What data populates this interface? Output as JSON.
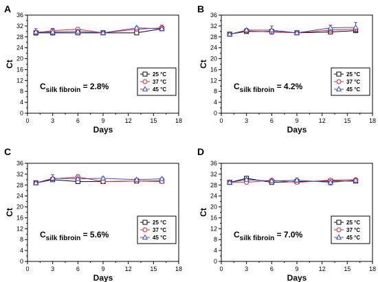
{
  "chart_data": [
    {
      "type": "line",
      "panel": "A",
      "xlabel": "Days",
      "ylabel": "Ct",
      "xlim": [
        0,
        18
      ],
      "ylim": [
        0,
        36
      ],
      "xticks": [
        0,
        3,
        6,
        9,
        12,
        15,
        18
      ],
      "yticks": [
        0,
        4,
        8,
        12,
        16,
        20,
        24,
        28,
        32,
        36
      ],
      "annotation": {
        "base": "C",
        "subscript": "silk fibroin",
        "value": " = 2.8%"
      },
      "legend_position": "right",
      "series": [
        {
          "name": "25 °C",
          "color": "#000000",
          "marker": "square",
          "x": [
            1,
            3,
            6,
            9,
            13,
            16
          ],
          "y": [
            29.5,
            29.5,
            29.5,
            29.5,
            29.5,
            31.0
          ],
          "err": [
            0.5,
            0.8,
            0.5,
            0.4,
            0.4,
            0.6
          ]
        },
        {
          "name": "37 °C",
          "color": "#e8202a",
          "marker": "circle",
          "x": [
            1,
            3,
            6,
            9,
            13,
            16
          ],
          "y": [
            29.5,
            30.3,
            30.8,
            29.5,
            30.8,
            31.3
          ],
          "err": [
            0.6,
            0.8,
            0.6,
            0.5,
            0.6,
            1.0
          ]
        },
        {
          "name": "45 °C",
          "color": "#3f48cc",
          "marker": "triangle",
          "x": [
            1,
            3,
            6,
            9,
            13,
            16
          ],
          "y": [
            29.8,
            29.8,
            30.0,
            29.5,
            31.3,
            31.0
          ],
          "err": [
            1.2,
            1.0,
            0.6,
            0.5,
            0.6,
            0.5
          ]
        }
      ]
    },
    {
      "type": "line",
      "panel": "B",
      "xlabel": "Days",
      "ylabel": "Ct",
      "xlim": [
        0,
        18
      ],
      "ylim": [
        0,
        36
      ],
      "xticks": [
        0,
        3,
        6,
        9,
        12,
        15,
        18
      ],
      "yticks": [
        0,
        4,
        8,
        12,
        16,
        20,
        24,
        28,
        32,
        36
      ],
      "annotation": {
        "base": "C",
        "subscript": "silk fibroin",
        "value": " = 4.2%"
      },
      "legend_position": "right",
      "series": [
        {
          "name": "25 °C",
          "color": "#000000",
          "marker": "square",
          "x": [
            1,
            3,
            6,
            9,
            13,
            16
          ],
          "y": [
            29.0,
            30.0,
            30.0,
            29.5,
            29.8,
            30.3
          ],
          "err": [
            0.3,
            0.5,
            0.6,
            0.4,
            0.5,
            0.6
          ]
        },
        {
          "name": "37 °C",
          "color": "#e8202a",
          "marker": "circle",
          "x": [
            1,
            3,
            6,
            9,
            13,
            16
          ],
          "y": [
            29.0,
            30.2,
            29.8,
            29.5,
            30.5,
            30.8
          ],
          "err": [
            0.3,
            0.6,
            0.8,
            0.5,
            0.8,
            0.8
          ]
        },
        {
          "name": "45 °C",
          "color": "#3f48cc",
          "marker": "triangle",
          "x": [
            1,
            3,
            6,
            9,
            13,
            16
          ],
          "y": [
            29.0,
            30.5,
            30.5,
            29.5,
            31.3,
            31.5
          ],
          "err": [
            0.3,
            0.6,
            1.5,
            0.5,
            1.0,
            1.8
          ]
        }
      ]
    },
    {
      "type": "line",
      "panel": "C",
      "xlabel": "Days",
      "ylabel": "Ct",
      "xlim": [
        0,
        18
      ],
      "ylim": [
        0,
        36
      ],
      "xticks": [
        0,
        3,
        6,
        9,
        12,
        15,
        18
      ],
      "yticks": [
        0,
        4,
        8,
        12,
        16,
        20,
        24,
        28,
        32,
        36
      ],
      "annotation": {
        "base": "C",
        "subscript": "silk fibroin",
        "value": " = 5.6%"
      },
      "legend_position": "right",
      "series": [
        {
          "name": "25 °C",
          "color": "#000000",
          "marker": "square",
          "x": [
            1,
            3,
            6,
            9,
            13,
            16
          ],
          "y": [
            28.8,
            30.0,
            29.3,
            29.3,
            29.5,
            29.5
          ],
          "err": [
            0.3,
            0.5,
            0.4,
            0.4,
            0.4,
            0.4
          ]
        },
        {
          "name": "37 °C",
          "color": "#e8202a",
          "marker": "circle",
          "x": [
            1,
            3,
            6,
            9,
            13,
            16
          ],
          "y": [
            28.8,
            30.3,
            31.0,
            29.3,
            29.5,
            29.3
          ],
          "err": [
            0.3,
            0.6,
            0.8,
            0.5,
            0.4,
            0.4
          ]
        },
        {
          "name": "45 °C",
          "color": "#3f48cc",
          "marker": "triangle",
          "x": [
            1,
            3,
            6,
            9,
            13,
            16
          ],
          "y": [
            28.8,
            30.5,
            30.3,
            30.5,
            30.0,
            30.3
          ],
          "err": [
            0.3,
            1.3,
            0.6,
            0.5,
            0.4,
            0.4
          ]
        }
      ]
    },
    {
      "type": "line",
      "panel": "D",
      "xlabel": "Days",
      "ylabel": "Ct",
      "xlim": [
        0,
        18
      ],
      "ylim": [
        0,
        36
      ],
      "xticks": [
        0,
        3,
        6,
        9,
        12,
        15,
        18
      ],
      "yticks": [
        0,
        4,
        8,
        12,
        16,
        20,
        24,
        28,
        32,
        36
      ],
      "annotation": {
        "base": "C",
        "subscript": "silk fibroin",
        "value": " = 7.0%"
      },
      "legend_position": "right",
      "series": [
        {
          "name": "25 °C",
          "color": "#000000",
          "marker": "square",
          "x": [
            1,
            3,
            6,
            9,
            13,
            16
          ],
          "y": [
            29.0,
            30.5,
            29.0,
            29.3,
            29.5,
            29.5
          ],
          "err": [
            0.3,
            0.4,
            0.4,
            0.4,
            0.4,
            0.4
          ]
        },
        {
          "name": "37 °C",
          "color": "#e8202a",
          "marker": "circle",
          "x": [
            1,
            3,
            6,
            9,
            13,
            16
          ],
          "y": [
            29.0,
            29.0,
            29.8,
            29.0,
            29.8,
            30.0
          ],
          "err": [
            0.3,
            0.4,
            0.5,
            0.4,
            0.5,
            0.5
          ]
        },
        {
          "name": "45 °C",
          "color": "#3f48cc",
          "marker": "triangle",
          "x": [
            1,
            3,
            6,
            9,
            13,
            16
          ],
          "y": [
            29.0,
            30.0,
            29.5,
            29.8,
            29.0,
            29.8
          ],
          "err": [
            0.3,
            0.5,
            0.6,
            0.8,
            1.0,
            0.6
          ]
        }
      ]
    }
  ]
}
